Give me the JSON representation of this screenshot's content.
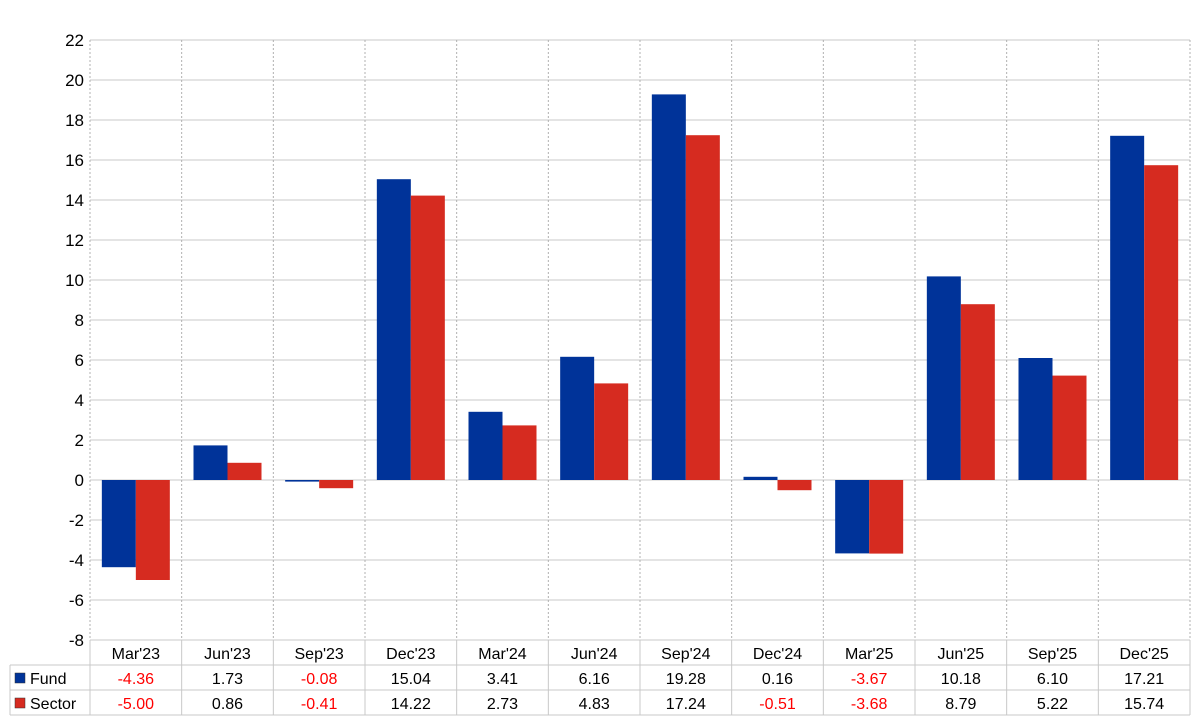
{
  "chart_data": {
    "type": "bar",
    "categories": [
      "Mar'23",
      "Jun'23",
      "Sep'23",
      "Dec'23",
      "Mar'24",
      "Jun'24",
      "Sep'24",
      "Dec'24",
      "Mar'25",
      "Jun'25",
      "Sep'25",
      "Dec'25"
    ],
    "series": [
      {
        "name": "Fund",
        "color": "#003399",
        "values": [
          -4.36,
          1.73,
          -0.08,
          15.04,
          3.41,
          6.16,
          19.28,
          0.16,
          -3.67,
          10.18,
          6.1,
          17.21
        ],
        "labels": [
          "-4.36",
          "1.73",
          "-0.08",
          "15.04",
          "3.41",
          "6.16",
          "19.28",
          "0.16",
          "-3.67",
          "10.18",
          "6.10",
          "17.21"
        ]
      },
      {
        "name": "Sector",
        "color": "#d62b20",
        "values": [
          -5.0,
          0.86,
          -0.41,
          14.22,
          2.73,
          4.83,
          17.24,
          -0.51,
          -3.68,
          8.79,
          5.22,
          15.74
        ],
        "labels": [
          "-5.00",
          "0.86",
          "-0.41",
          "14.22",
          "2.73",
          "4.83",
          "17.24",
          "-0.51",
          "-3.68",
          "8.79",
          "5.22",
          "15.74"
        ]
      }
    ],
    "ylim": [
      -8,
      22
    ],
    "yticks": [
      "22",
      "20",
      "18",
      "16",
      "14",
      "12",
      "10",
      "8",
      "6",
      "4",
      "2",
      "0",
      "-2",
      "-4",
      "-6",
      "-8"
    ],
    "grid": true,
    "legend": "data table below chart",
    "negative_value_color": "#ff0000"
  }
}
